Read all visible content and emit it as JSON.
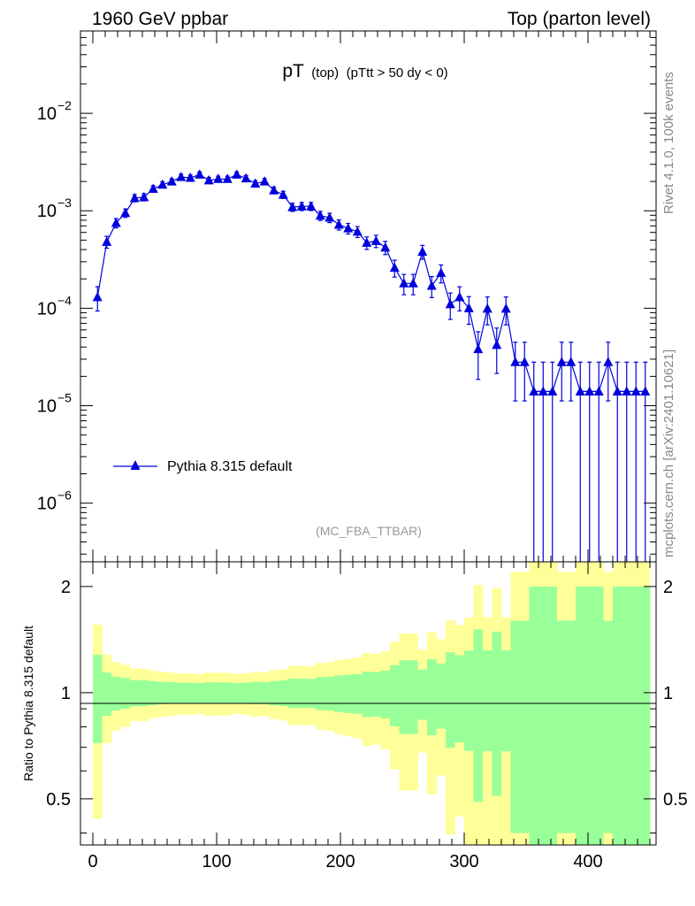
{
  "header": {
    "left_label": "1960 GeV ppbar",
    "right_label": "Top (parton level)"
  },
  "side": {
    "rivet_label": "Rivet 4.1.0,  100k events",
    "mcplots_label": "mcplots.cern.ch [arXiv:2401.10621]"
  },
  "plot": {
    "title_main": "pT",
    "title_sub": "(top)",
    "title_cut": "(pTtt > 50 dy < 0)",
    "analysis_label": "(MC_FBA_TTBAR)",
    "ratio_ylabel": "Ratio to Pythia 8.315 default"
  },
  "legend": {
    "entry": "Pythia 8.315 default"
  },
  "colors": {
    "series": "#0000dd",
    "band_inner": "#99ff99",
    "band_outer": "#ffff99"
  },
  "chart_data": {
    "type": "line",
    "title": "pT (top) (pTtt > 50 dy < 0)",
    "xlabel": "",
    "ylabel": "",
    "xlim": [
      -10,
      455
    ],
    "ylim_log": [
      2.5e-07,
      0.07
    ],
    "ratio_ylim": [
      0.37,
      2.35
    ],
    "x_ticks": [
      0,
      100,
      200,
      300,
      400
    ],
    "y_ticks": [
      {
        "value": 0.01,
        "label": "10",
        "exp": "−2"
      },
      {
        "value": 0.001,
        "label": "10",
        "exp": "−3"
      },
      {
        "value": 0.0001,
        "label": "10",
        "exp": "−4"
      },
      {
        "value": 1e-05,
        "label": "10",
        "exp": "−5"
      },
      {
        "value": 1e-06,
        "label": "10",
        "exp": "−6"
      }
    ],
    "ratio_ticks": [
      {
        "value": 0.5,
        "label": "0.5"
      },
      {
        "value": 1,
        "label": "1"
      },
      {
        "value": 2,
        "label": "2"
      }
    ],
    "series": [
      {
        "name": "Pythia 8.315 default",
        "bin_width": 7.5,
        "x": [
          3.75,
          11.25,
          18.75,
          26.25,
          33.75,
          41.25,
          48.75,
          56.25,
          63.75,
          71.25,
          78.75,
          86.25,
          93.75,
          101.25,
          108.75,
          116.25,
          123.75,
          131.25,
          138.75,
          146.25,
          153.75,
          161.25,
          168.75,
          176.25,
          183.75,
          191.25,
          198.75,
          206.25,
          213.75,
          221.25,
          228.75,
          236.25,
          243.75,
          251.25,
          258.75,
          266.25,
          273.75,
          281.25,
          288.75,
          296.25,
          303.75,
          311.25,
          318.75,
          326.25,
          333.75,
          341.25,
          348.75,
          356.25,
          363.75,
          371.25,
          378.75,
          386.25,
          393.75,
          401.25,
          408.75,
          416.25,
          423.75,
          431.25,
          438.75,
          446.25
        ],
        "y": [
          0.00013,
          0.00048,
          0.00075,
          0.00095,
          0.00135,
          0.00138,
          0.00168,
          0.00185,
          0.002,
          0.00222,
          0.00218,
          0.00235,
          0.00205,
          0.00212,
          0.00212,
          0.00235,
          0.00215,
          0.0019,
          0.002,
          0.00162,
          0.00146,
          0.00109,
          0.00111,
          0.00111,
          0.00089,
          0.00085,
          0.00072,
          0.00066,
          0.00061,
          0.00047,
          0.00049,
          0.00042,
          0.00026,
          0.00018,
          0.00018,
          0.00038,
          0.00017,
          0.00023,
          0.00011,
          0.00013,
          0.0001,
          3.8e-05,
          9.9e-05,
          4.2e-05,
          9.9e-05,
          2.8e-05,
          2.8e-05,
          1.4e-05,
          1.4e-05,
          1.4e-05,
          2.8e-05,
          2.8e-05,
          1.4e-05,
          1.4e-05,
          1.4e-05,
          2.8e-05,
          1.4e-05,
          1.4e-05,
          1.4e-05,
          1.4e-05
        ],
        "rel_err": [
          0.28,
          0.14,
          0.11,
          0.1,
          0.085,
          0.085,
          0.077,
          0.073,
          0.07,
          0.067,
          0.067,
          0.065,
          0.07,
          0.069,
          0.069,
          0.065,
          0.068,
          0.073,
          0.071,
          0.079,
          0.083,
          0.096,
          0.095,
          0.095,
          0.107,
          0.11,
          0.119,
          0.124,
          0.129,
          0.147,
          0.144,
          0.155,
          0.197,
          0.236,
          0.236,
          0.162,
          0.243,
          0.209,
          0.302,
          0.277,
          0.316,
          0.51,
          0.318,
          0.49,
          0.318,
          0.6,
          0.6,
          1.0,
          1.0,
          1.0,
          0.6,
          0.6,
          1.0,
          1.0,
          1.0,
          0.6,
          1.0,
          1.0,
          1.0,
          1.0
        ]
      }
    ]
  }
}
